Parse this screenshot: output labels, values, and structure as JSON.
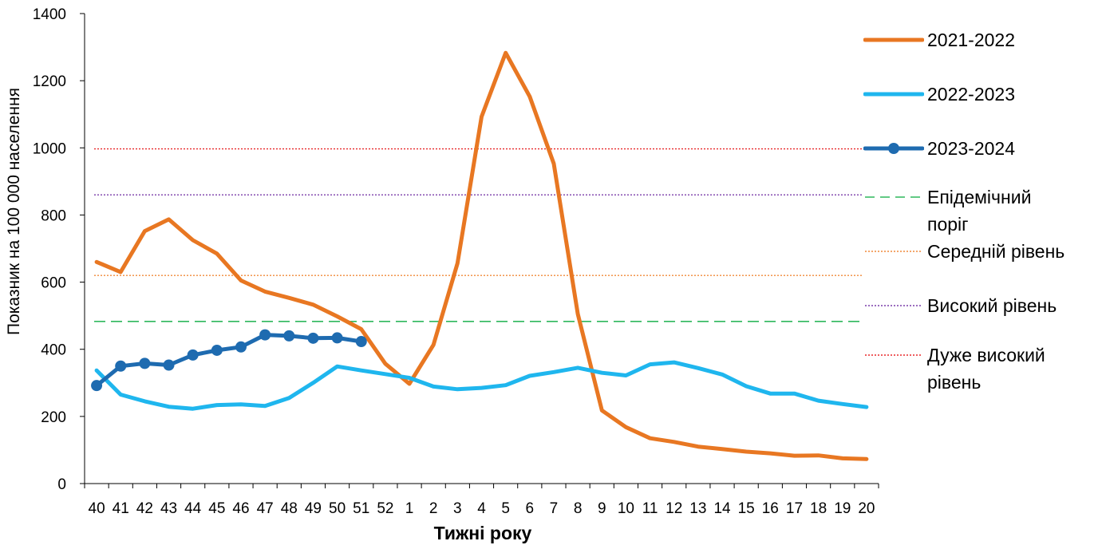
{
  "chart_data": {
    "type": "line",
    "title": "",
    "xlabel": "Тижні року",
    "ylabel": "Показник на 100 000 населення",
    "ylim": [
      0,
      1400
    ],
    "yticks": [
      0,
      200,
      400,
      600,
      800,
      1000,
      1200,
      1400
    ],
    "categories": [
      "40",
      "41",
      "42",
      "43",
      "44",
      "45",
      "46",
      "47",
      "48",
      "49",
      "50",
      "51",
      "52",
      "1",
      "2",
      "3",
      "4",
      "5",
      "6",
      "7",
      "8",
      "9",
      "10",
      "11",
      "12",
      "13",
      "14",
      "15",
      "16",
      "17",
      "18",
      "19",
      "20"
    ],
    "series": [
      {
        "name": "2021-2022",
        "color": "#E87722",
        "marker": false,
        "values": [
          660,
          630,
          752,
          787,
          725,
          685,
          605,
          572,
          553,
          533,
          498,
          460,
          357,
          297,
          413,
          656,
          1093,
          1283,
          1153,
          953,
          505,
          218,
          168,
          135,
          124,
          110,
          103,
          95,
          90,
          83,
          84,
          75,
          73
        ]
      },
      {
        "name": "2022-2023",
        "color": "#1FB6EE",
        "marker": false,
        "values": [
          337,
          265,
          245,
          229,
          223,
          234,
          236,
          231,
          255,
          300,
          349,
          337,
          326,
          315,
          289,
          281,
          285,
          293,
          321,
          332,
          345,
          330,
          322,
          355,
          361,
          344,
          325,
          290,
          268,
          268,
          247,
          237,
          228
        ]
      },
      {
        "name": "2023-2024",
        "color": "#1E6BB0",
        "marker": true,
        "values": [
          292,
          350,
          358,
          353,
          383,
          397,
          407,
          443,
          440,
          433,
          434,
          423,
          null,
          null,
          null,
          null,
          null,
          null,
          null,
          null,
          null,
          null,
          null,
          null,
          null,
          null,
          null,
          null,
          null,
          null,
          null,
          null,
          null
        ]
      }
    ],
    "thresholds": [
      {
        "name": "Епідемічний поріг",
        "value": 483,
        "color": "#2EB85C",
        "style": "dashed"
      },
      {
        "name": "Середній рівень",
        "value": 620,
        "color": "#F08A3A",
        "style": "dotted"
      },
      {
        "name": "Високий рівень",
        "value": 860,
        "color": "#7A3DAA",
        "style": "dotted"
      },
      {
        "name": "Дуже високий рівень",
        "value": 997,
        "color": "#E8282B",
        "style": "dotted"
      }
    ],
    "legend_position": "right"
  }
}
